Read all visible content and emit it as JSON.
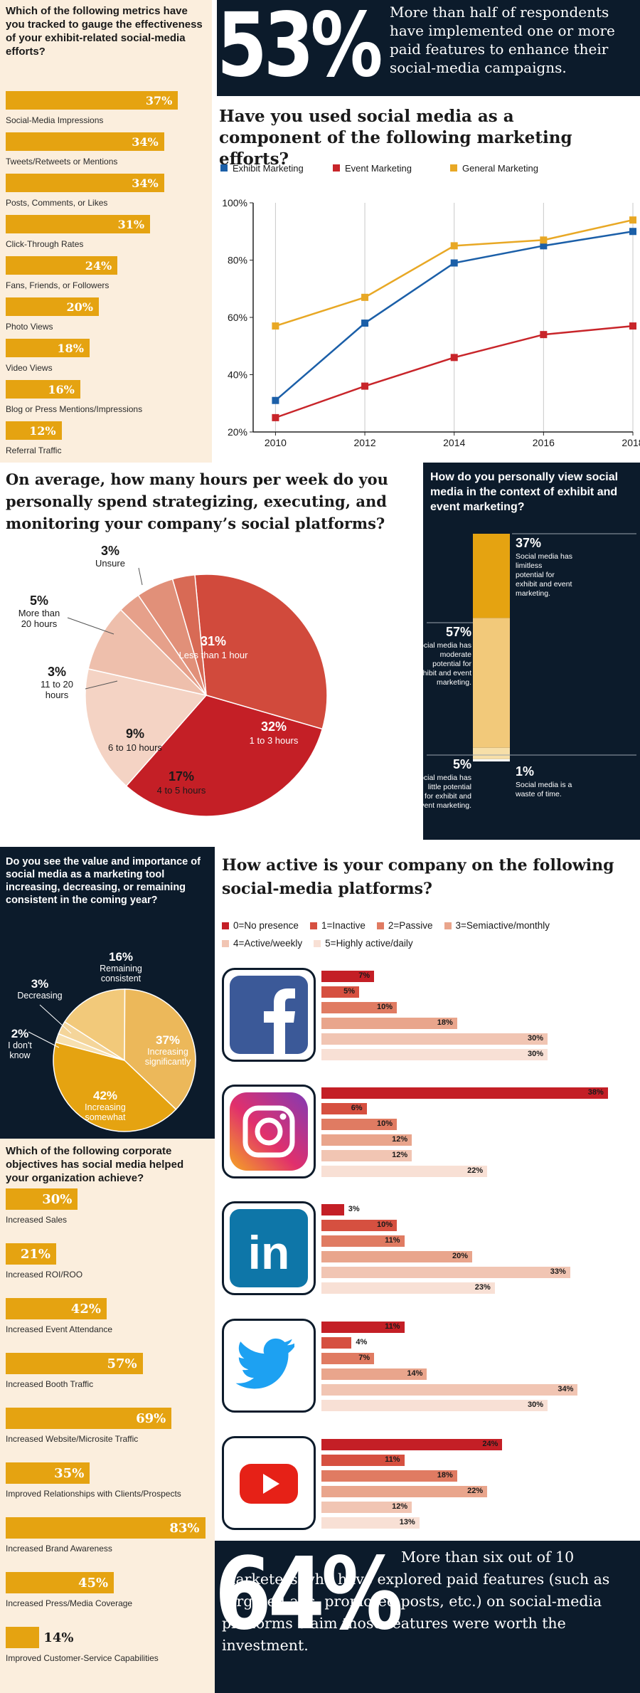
{
  "metrics": {
    "question": "Which of the following metrics have you tracked to gauge the effectiveness of your exhibit-related social-media efforts?",
    "items": [
      {
        "label": "Social-Media Impressions",
        "value": "37%",
        "pct": 37
      },
      {
        "label": "Tweets/Retweets or Mentions",
        "value": "34%",
        "pct": 34
      },
      {
        "label": "Posts, Comments, or Likes",
        "value": "34%",
        "pct": 34
      },
      {
        "label": "Click-Through Rates",
        "value": "31%",
        "pct": 31
      },
      {
        "label": "Fans, Friends, or Followers",
        "value": "24%",
        "pct": 24
      },
      {
        "label": "Photo Views",
        "value": "20%",
        "pct": 20
      },
      {
        "label": "Video Views",
        "value": "18%",
        "pct": 18
      },
      {
        "label": "Blog or Press Mentions/Impressions",
        "value": "16%",
        "pct": 16
      },
      {
        "label": "Referral Traffic",
        "value": "12%",
        "pct": 12
      }
    ]
  },
  "stat53": {
    "big": "53%",
    "text": "More than half of respondents have implemented one or more paid features to enhance their social-media campaigns."
  },
  "line_chart": {
    "title": "Have you used social media as a component of the following marketing efforts?",
    "legend": [
      "Exhibit Marketing",
      "Event Marketing",
      "General Marketing"
    ],
    "colors": [
      "#1b5fa8",
      "#c8252a",
      "#e8a825"
    ],
    "ytick_labels": [
      "100%",
      "80%",
      "60%",
      "40%",
      "20%"
    ],
    "xtick_labels": [
      "2010",
      "2012",
      "2014",
      "2016",
      "2018"
    ]
  },
  "hours": {
    "question": "On average, how many hours per week do you personally spend strategizing, executing, and monitoring your company’s social platforms?",
    "slices": [
      {
        "pct": "31%",
        "label": "Less than 1 hour"
      },
      {
        "pct": "32%",
        "label": "1 to 3 hours"
      },
      {
        "pct": "17%",
        "label": "4 to 5 hours"
      },
      {
        "pct": "9%",
        "label": "6 to 10 hours"
      },
      {
        "pct": "3%",
        "label": "11 to 20 hours"
      },
      {
        "pct": "5%",
        "label": "More than 20 hours"
      },
      {
        "pct": "3%",
        "label": "Unsure"
      }
    ]
  },
  "view": {
    "question": "How do you personally view social media in the context of exhibit and event marketing?",
    "items": [
      {
        "pct": "37%",
        "label": "Social media has limitless potential for exhibit and event marketing."
      },
      {
        "pct": "57%",
        "label": "Social media has moderate potential for exhibit and event marketing."
      },
      {
        "pct": "5%",
        "label": "Social media has little potential for exhibit and event marketing."
      },
      {
        "pct": "1%",
        "label": "Social media is a waste of time."
      }
    ]
  },
  "value": {
    "question": "Do you see the value and importance of social media as a marketing tool increasing, decreasing, or remaining consistent in the coming year?",
    "slices": [
      {
        "pct": "16%",
        "label": "Remaining consistent"
      },
      {
        "pct": "37%",
        "label": "Increasing significantly"
      },
      {
        "pct": "42%",
        "label": "Increasing somewhat"
      },
      {
        "pct": "2%",
        "label": "I don't know"
      },
      {
        "pct": "3%",
        "label": "Decreasing"
      }
    ]
  },
  "objectives": {
    "question": "Which of the following corporate objectives has social media helped your organization achieve?",
    "items": [
      {
        "label": "Increased Sales",
        "value": "30%",
        "pct": 30
      },
      {
        "label": "Increased ROI/ROO",
        "value": "21%",
        "pct": 21
      },
      {
        "label": "Increased Event Attendance",
        "value": "42%",
        "pct": 42
      },
      {
        "label": "Increased Booth Traffic",
        "value": "57%",
        "pct": 57
      },
      {
        "label": "Increased Website/Microsite Traffic",
        "value": "69%",
        "pct": 69
      },
      {
        "label": "Improved Relationships with Clients/Prospects",
        "value": "35%",
        "pct": 35
      },
      {
        "label": "Increased Brand Awareness",
        "value": "83%",
        "pct": 83
      },
      {
        "label": "Increased Press/Media Coverage",
        "value": "45%",
        "pct": 45
      },
      {
        "label": "Improved Customer-Service Capabilities",
        "value": "14%",
        "pct": 14
      }
    ]
  },
  "activity": {
    "question": "How active is your company on the following social-media platforms?",
    "legend": [
      "0=No presence",
      "1=Inactive",
      "2=Passive",
      "3=Semiactive/monthly",
      "4=Active/weekly",
      "5=Highly active/daily"
    ],
    "colors": [
      "#c41f26",
      "#d65040",
      "#e07b62",
      "#e9a58c",
      "#f1c5b3",
      "#f8e0d5"
    ],
    "platforms": [
      {
        "name": "facebook-icon",
        "values": [
          "7%",
          "5%",
          "10%",
          "18%",
          "30%",
          "30%"
        ]
      },
      {
        "name": "instagram-icon",
        "values": [
          "38%",
          "6%",
          "10%",
          "12%",
          "12%",
          "22%"
        ]
      },
      {
        "name": "linkedin-icon",
        "values": [
          "3%",
          "10%",
          "11%",
          "20%",
          "33%",
          "23%"
        ]
      },
      {
        "name": "twitter-icon",
        "values": [
          "11%",
          "4%",
          "7%",
          "14%",
          "34%",
          "30%"
        ]
      },
      {
        "name": "youtube-icon",
        "values": [
          "24%",
          "11%",
          "18%",
          "22%",
          "12%",
          "13%"
        ]
      }
    ],
    "linkedin_text": "in"
  },
  "stat64": {
    "big": "64%",
    "text": "More than six out of 10 marketers who have explored paid features (such as targeted ads, promoted posts, etc.) on social-media platforms claim those features were worth the investment."
  },
  "chart_data": [
    {
      "type": "bar",
      "title": "Which of the following metrics have you tracked to gauge the effectiveness of your exhibit-related social-media efforts?",
      "categories": [
        "Social-Media Impressions",
        "Tweets/Retweets or Mentions",
        "Posts, Comments, or Likes",
        "Click-Through Rates",
        "Fans, Friends, or Followers",
        "Photo Views",
        "Video Views",
        "Blog or Press Mentions/Impressions",
        "Referral Traffic"
      ],
      "values": [
        37,
        34,
        34,
        31,
        24,
        20,
        18,
        16,
        12
      ]
    },
    {
      "type": "line",
      "title": "Have you used social media as a component of the following marketing efforts?",
      "x": [
        2010,
        2012,
        2014,
        2016,
        2018
      ],
      "ylim": [
        20,
        100
      ],
      "xlim": [
        2009.5,
        2018
      ],
      "grid": true,
      "legend": "top",
      "series": [
        {
          "name": "Exhibit Marketing",
          "values": [
            31,
            58,
            79,
            85,
            90
          ]
        },
        {
          "name": "Event Marketing",
          "values": [
            25,
            36,
            46,
            54,
            57
          ]
        },
        {
          "name": "General Marketing",
          "values": [
            57,
            67,
            85,
            87,
            94
          ]
        }
      ]
    },
    {
      "type": "pie",
      "title": "On average, how many hours per week do you personally spend strategizing, executing, and monitoring your company’s social platforms?",
      "categories": [
        "Less than 1 hour",
        "1 to 3 hours",
        "4 to 5 hours",
        "6 to 10 hours",
        "11 to 20 hours",
        "More than 20 hours",
        "Unsure"
      ],
      "values": [
        31,
        32,
        17,
        9,
        3,
        5,
        3
      ]
    },
    {
      "type": "bar",
      "title": "How do you personally view social media in the context of exhibit and event marketing?",
      "categories": [
        "Limitless potential",
        "Moderate potential",
        "Little potential",
        "Waste of time"
      ],
      "values": [
        37,
        57,
        5,
        1
      ]
    },
    {
      "type": "pie",
      "title": "Do you see the value and importance of social media as a marketing tool increasing, decreasing, or remaining consistent in the coming year?",
      "categories": [
        "Remaining consistent",
        "Increasing significantly",
        "Increasing somewhat",
        "I don't know",
        "Decreasing"
      ],
      "values": [
        16,
        37,
        42,
        2,
        3
      ]
    },
    {
      "type": "bar",
      "title": "Which of the following corporate objectives has social media helped your organization achieve?",
      "categories": [
        "Increased Sales",
        "Increased ROI/ROO",
        "Increased Event Attendance",
        "Increased Booth Traffic",
        "Increased Website/Microsite Traffic",
        "Improved Relationships with Clients/Prospects",
        "Increased Brand Awareness",
        "Increased Press/Media Coverage",
        "Improved Customer-Service Capabilities"
      ],
      "values": [
        30,
        21,
        42,
        57,
        69,
        35,
        83,
        45,
        14
      ]
    },
    {
      "type": "bar",
      "title": "How active is your company on the following social-media platforms?",
      "categories": [
        "Facebook",
        "Instagram",
        "LinkedIn",
        "Twitter",
        "YouTube"
      ],
      "series": [
        {
          "name": "0=No presence",
          "values": [
            7,
            38,
            3,
            11,
            24
          ]
        },
        {
          "name": "1=Inactive",
          "values": [
            5,
            6,
            10,
            4,
            11
          ]
        },
        {
          "name": "2=Passive",
          "values": [
            10,
            10,
            11,
            7,
            18
          ]
        },
        {
          "name": "3=Semiactive/monthly",
          "values": [
            18,
            12,
            20,
            14,
            22
          ]
        },
        {
          "name": "4=Active/weekly",
          "values": [
            30,
            12,
            33,
            34,
            12
          ]
        },
        {
          "name": "5=Highly active/daily",
          "values": [
            30,
            22,
            23,
            30,
            13
          ]
        }
      ]
    }
  ]
}
